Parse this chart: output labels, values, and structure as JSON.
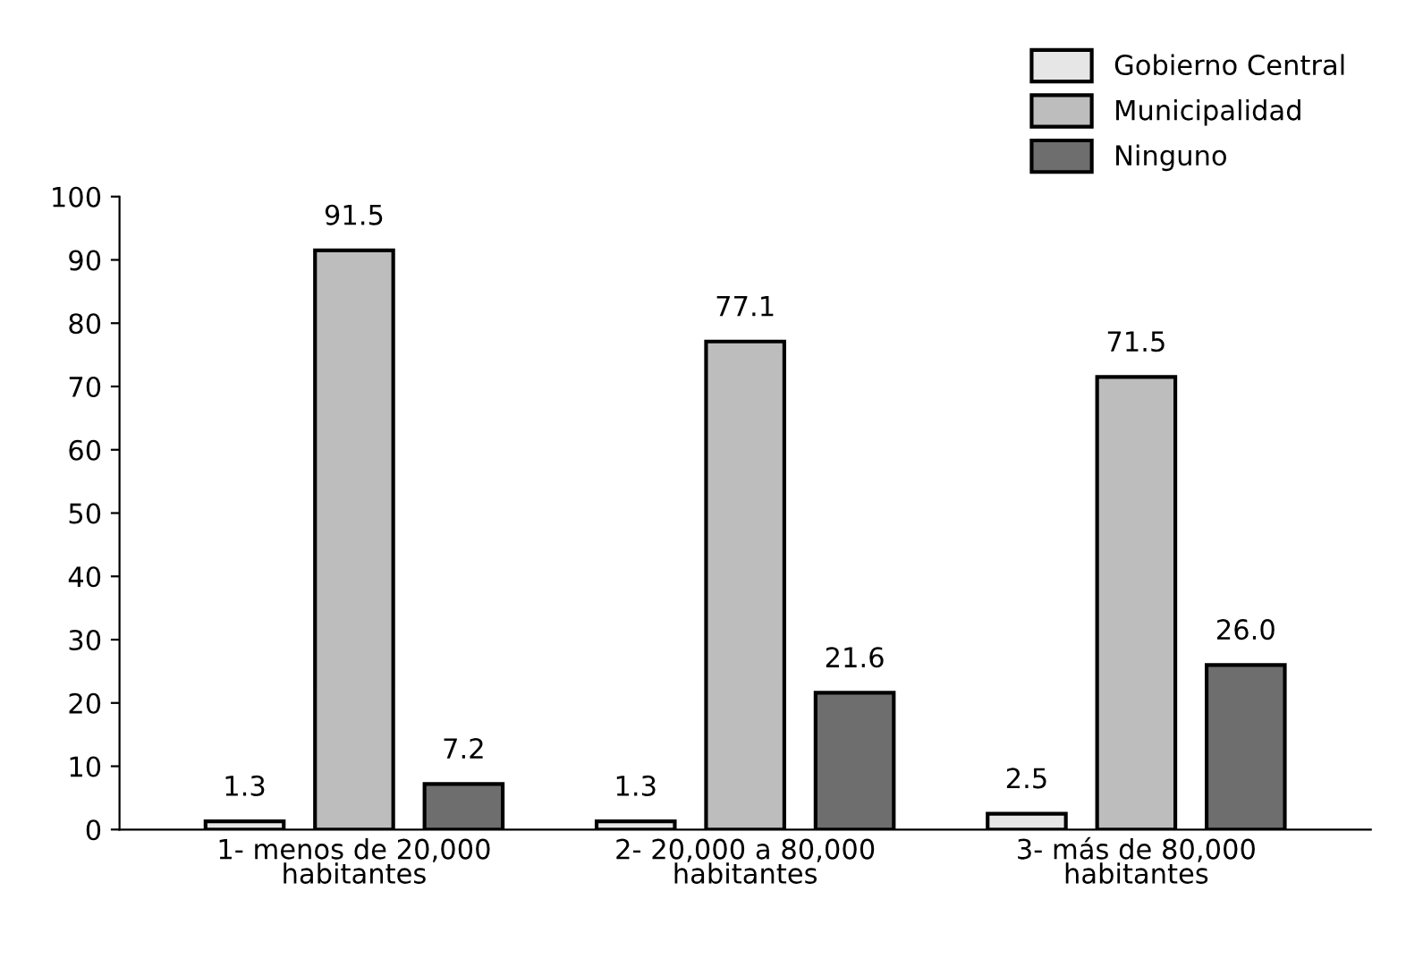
{
  "chart_data": {
    "type": "bar",
    "categories": [
      "1- menos de 20,000\nhabitantes",
      "2- 20,000 a 80,000\nhabitantes",
      "3- más de 80,000\nhabitantes"
    ],
    "series": [
      {
        "name": "Gobierno Central",
        "color": "#e6e6e6",
        "values": [
          1.3,
          1.3,
          2.5
        ]
      },
      {
        "name": "Municipalidad",
        "color": "#bdbdbd",
        "values": [
          91.5,
          77.1,
          71.5
        ]
      },
      {
        "name": "Ninguno",
        "color": "#6e6e6e",
        "values": [
          7.2,
          21.6,
          26.0
        ]
      }
    ],
    "value_labels": [
      [
        "1.3",
        "1.3",
        "2.5"
      ],
      [
        "91.5",
        "77.1",
        "71.5"
      ],
      [
        "7.2",
        "21.6",
        "26.0"
      ]
    ],
    "ylim": [
      0,
      100
    ],
    "yticks": [
      0,
      10,
      20,
      30,
      40,
      50,
      60,
      70,
      80,
      90,
      100
    ],
    "grid": false,
    "legend": "top right"
  }
}
